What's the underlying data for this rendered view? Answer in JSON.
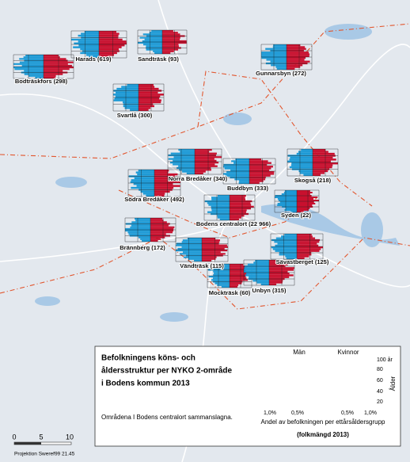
{
  "areas": [
    {
      "label": "Harads (619)"
    },
    {
      "label": "Sandträsk (93)"
    },
    {
      "label": "Bodträskfors (298)"
    },
    {
      "label": "Gunnarsbyn (272)"
    },
    {
      "label": "Svartlå (300)"
    },
    {
      "label": "Norra Bredåker (340)"
    },
    {
      "label": "Buddbyn (333)"
    },
    {
      "label": "Skogså (218)"
    },
    {
      "label": "Södra Bredåker (492)"
    },
    {
      "label": "Syden (22)"
    },
    {
      "label": "Bodens centralort (22 966)"
    },
    {
      "label": "Brännberg (172)"
    },
    {
      "label": "Vändträsk (115)"
    },
    {
      "label": "Sävastberget (125)"
    },
    {
      "label": "Mockträsk (60)"
    },
    {
      "label": "Unbyn (315)"
    }
  ],
  "legend": {
    "title": [
      "Befolkningens köns- och",
      "åldersstruktur per NYKO 2-område",
      "i Bodens kommun 2013"
    ],
    "note": "Områdena I Bodens centralort sammanslagna.",
    "men": "Män",
    "women": "Kvinnor",
    "age_ticks": [
      "100 år",
      "80",
      "60",
      "40",
      "20"
    ],
    "age_label": "Ålder",
    "share_ticks": [
      "1,0%",
      "0,5%",
      "0,5%",
      "1,0%"
    ],
    "share_label": "Andel av befolkningen per ettårsåldersgrupp",
    "population": "(folkmängd 2013)"
  },
  "scale": {
    "ticks": [
      "0",
      "5",
      "10"
    ],
    "projection": "Projektion Sweref99 21.45"
  }
}
